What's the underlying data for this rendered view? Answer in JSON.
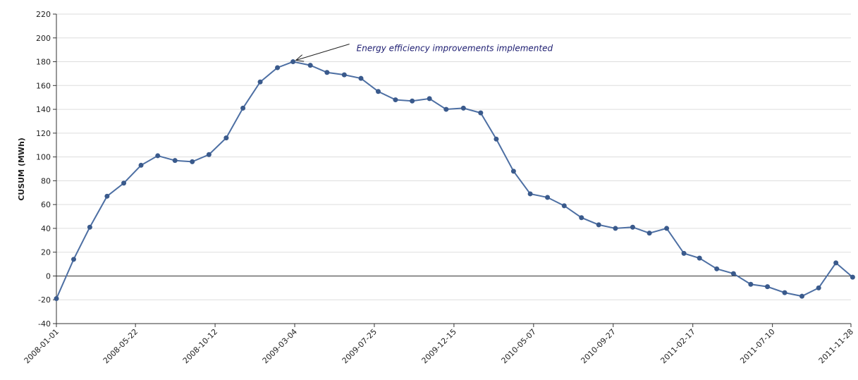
{
  "chart_data": {
    "type": "line",
    "y_label": "CUSUM (MWh)",
    "annotation": "Energy efficiency improvements implemented",
    "x": [
      "2008-01-01",
      "2008-02-01",
      "2008-03-01",
      "2008-04-01",
      "2008-05-01",
      "2008-06-01",
      "2008-07-01",
      "2008-08-01",
      "2008-09-01",
      "2008-10-01",
      "2008-11-01",
      "2008-12-01",
      "2009-01-01",
      "2009-02-01",
      "2009-03-01",
      "2009-04-01",
      "2009-05-01",
      "2009-06-01",
      "2009-07-01",
      "2009-08-01",
      "2009-09-01",
      "2009-10-01",
      "2009-11-01",
      "2009-12-01",
      "2010-01-01",
      "2010-02-01",
      "2010-03-01",
      "2010-04-01",
      "2010-05-01",
      "2010-06-01",
      "2010-07-01",
      "2010-08-01",
      "2010-09-01",
      "2010-10-01",
      "2010-11-01",
      "2010-12-01",
      "2011-01-01",
      "2011-02-01",
      "2011-03-01",
      "2011-04-01",
      "2011-05-01",
      "2011-06-01",
      "2011-07-01",
      "2011-08-01",
      "2011-09-01",
      "2011-10-01",
      "2011-11-01",
      "2011-12-01"
    ],
    "values": [
      -19,
      14,
      41,
      67,
      78,
      93,
      101,
      97,
      96,
      102,
      116,
      141,
      163,
      175,
      180,
      177,
      171,
      169,
      166,
      155,
      148,
      147,
      149,
      140,
      141,
      137,
      115,
      88,
      69,
      66,
      59,
      49,
      43,
      40,
      41,
      36,
      40,
      19,
      15,
      6,
      2,
      -7,
      -9,
      -14,
      -17,
      -10,
      11,
      -1
    ],
    "color": "#4d6fa3",
    "xlim": [
      "2008-01-01",
      "2011-11-28"
    ],
    "xticks": [
      "2008-01-01",
      "2008-05-22",
      "2008-10-12",
      "2009-03-04",
      "2009-07-25",
      "2009-12-15",
      "2010-05-07",
      "2010-09-27",
      "2011-02-17",
      "2011-07-10",
      "2011-11-28"
    ],
    "ylim": [
      -40,
      220
    ],
    "yticks": [
      -40,
      -20,
      0,
      20,
      40,
      60,
      80,
      100,
      120,
      140,
      160,
      180,
      200,
      220
    ],
    "grid": true
  }
}
